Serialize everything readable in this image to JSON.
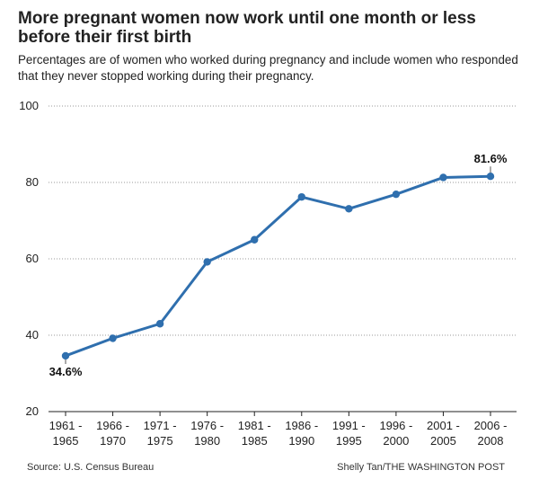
{
  "header": {
    "title": "More pregnant women now work until one month or less before their first birth",
    "subtitle": "Percentages are of women who worked during pregnancy and include women who responded that they never stopped working during their pregnancy."
  },
  "chart_data": {
    "type": "line",
    "title": "More pregnant women now work until one month or less before their first birth",
    "subtitle": "Percentages are of women who worked during pregnancy and include women who responded that they never stopped working during their pregnancy.",
    "xlabel": "",
    "ylabel": "",
    "ylim": [
      20,
      100
    ],
    "yticks": [
      20,
      40,
      60,
      80,
      100
    ],
    "grid": true,
    "categories": [
      [
        "1961 -",
        "1965"
      ],
      [
        "1966 -",
        "1970"
      ],
      [
        "1971 -",
        "1975"
      ],
      [
        "1976 -",
        "1980"
      ],
      [
        "1981 -",
        "1985"
      ],
      [
        "1986 -",
        "1990"
      ],
      [
        "1991 -",
        "1995"
      ],
      [
        "1996 -",
        "2000"
      ],
      [
        "2001 -",
        "2005"
      ],
      [
        "2006 -",
        "2008"
      ]
    ],
    "series": [
      {
        "name": "Worked until one month or less before first birth",
        "color": "#2f6fae",
        "values": [
          34.6,
          39.2,
          43.0,
          59.2,
          65.0,
          76.2,
          73.1,
          76.9,
          81.3,
          81.6
        ]
      }
    ],
    "annotations": [
      {
        "index": 0,
        "text": "34.6%",
        "position": "below"
      },
      {
        "index": 9,
        "text": "81.6%",
        "position": "above"
      }
    ]
  },
  "footer": {
    "source": "Source: U.S. Census Bureau",
    "credit": "Shelly Tan/THE WASHINGTON POST"
  }
}
